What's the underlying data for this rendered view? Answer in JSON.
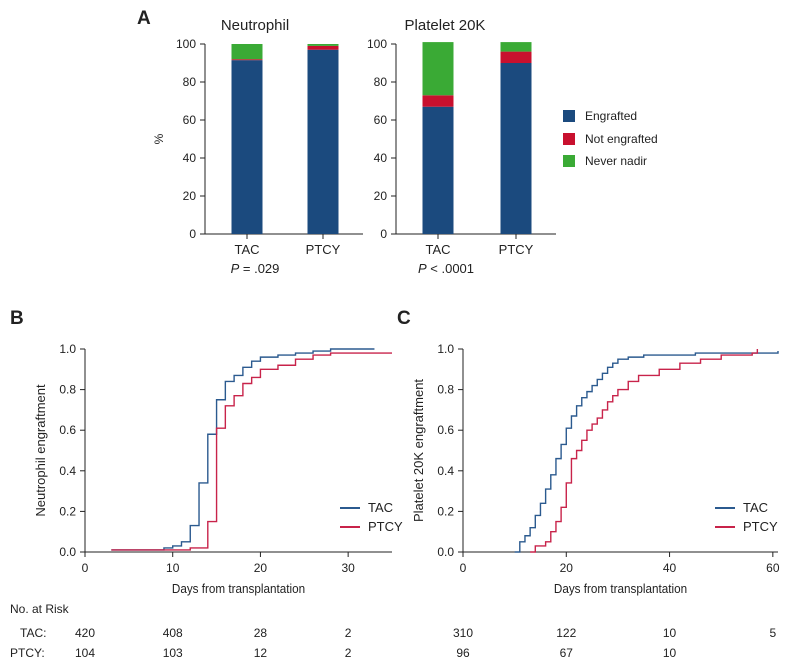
{
  "panel_labels": {
    "a": "A",
    "b": "B",
    "c": "C"
  },
  "colors": {
    "engrafted": "#1b4a7e",
    "not_engrafted": "#c8102e",
    "never_nadir": "#3aaa35",
    "tac_line": "#2b5a8f",
    "ptcy_line": "#c8234a"
  },
  "legend_a": [
    {
      "label": "Engrafted",
      "color": "#1b4a7e"
    },
    {
      "label": "Not engrafted",
      "color": "#c8102e"
    },
    {
      "label": "Never nadir",
      "color": "#3aaa35"
    }
  ],
  "chart_data": [
    {
      "type": "bar",
      "stacked": true,
      "title": "Neutrophil",
      "ylabel": "%",
      "ylim": [
        0,
        100
      ],
      "yticks": [
        0,
        20,
        40,
        60,
        80,
        100
      ],
      "categories": [
        "TAC",
        "PTCY"
      ],
      "series": [
        {
          "name": "Engrafted",
          "values": [
            91.5,
            97
          ]
        },
        {
          "name": "Not engrafted",
          "values": [
            0.5,
            2
          ]
        },
        {
          "name": "Never nadir",
          "values": [
            8,
            1
          ]
        }
      ],
      "annotation": {
        "p": "P",
        "rest": " = .029"
      }
    },
    {
      "type": "bar",
      "stacked": true,
      "title": "Platelet 20K",
      "ylim": [
        0,
        100
      ],
      "yticks": [
        0,
        20,
        40,
        60,
        80,
        100
      ],
      "categories": [
        "TAC",
        "PTCY"
      ],
      "series": [
        {
          "name": "Engrafted",
          "values": [
            67,
            90
          ]
        },
        {
          "name": "Not engrafted",
          "values": [
            6,
            6
          ]
        },
        {
          "name": "Never nadir",
          "values": [
            28,
            5
          ]
        }
      ],
      "annotation": {
        "p": "P",
        "rest": " < .0001"
      }
    },
    {
      "type": "line",
      "step": true,
      "xlabel": "Days from transplantation",
      "ylabel": "Neutrophil engraftment",
      "xlim": [
        0,
        35
      ],
      "ylim": [
        0,
        1
      ],
      "xticks": [
        0,
        10,
        20,
        30
      ],
      "yticks": [
        0.0,
        0.2,
        0.4,
        0.6,
        0.8,
        1.0
      ],
      "series": [
        {
          "name": "TAC",
          "points": [
            [
              3,
              0.01
            ],
            [
              8,
              0.01
            ],
            [
              9,
              0.02
            ],
            [
              10,
              0.03
            ],
            [
              11,
              0.05
            ],
            [
              12,
              0.13
            ],
            [
              13,
              0.34
            ],
            [
              14,
              0.58
            ],
            [
              15,
              0.75
            ],
            [
              16,
              0.84
            ],
            [
              17,
              0.87
            ],
            [
              18,
              0.91
            ],
            [
              19,
              0.94
            ],
            [
              20,
              0.96
            ],
            [
              22,
              0.97
            ],
            [
              24,
              0.98
            ],
            [
              26,
              0.99
            ],
            [
              28,
              1.0
            ],
            [
              33,
              1.0
            ]
          ]
        },
        {
          "name": "PTCY",
          "points": [
            [
              3,
              0.01
            ],
            [
              10,
              0.01
            ],
            [
              12,
              0.02
            ],
            [
              14,
              0.15
            ],
            [
              15,
              0.61
            ],
            [
              16,
              0.72
            ],
            [
              17,
              0.77
            ],
            [
              18,
              0.83
            ],
            [
              19,
              0.86
            ],
            [
              20,
              0.9
            ],
            [
              22,
              0.92
            ],
            [
              24,
              0.95
            ],
            [
              26,
              0.97
            ],
            [
              28,
              0.98
            ],
            [
              35,
              0.98
            ]
          ]
        }
      ],
      "risk": {
        "TAC": [
          "420",
          "408",
          "28",
          "2"
        ],
        "PTCY": [
          "104",
          "103",
          "12",
          "2"
        ]
      }
    },
    {
      "type": "line",
      "step": true,
      "xlabel": "Days from transplantation",
      "ylabel": "Platelet 20K engraftment",
      "xlim": [
        0,
        61
      ],
      "ylim": [
        0,
        1
      ],
      "xticks": [
        0,
        20,
        40,
        60
      ],
      "yticks": [
        0.0,
        0.2,
        0.4,
        0.6,
        0.8,
        1.0
      ],
      "series": [
        {
          "name": "TAC",
          "points": [
            [
              10,
              0.0
            ],
            [
              11,
              0.05
            ],
            [
              12,
              0.08
            ],
            [
              13,
              0.12
            ],
            [
              14,
              0.18
            ],
            [
              15,
              0.24
            ],
            [
              16,
              0.31
            ],
            [
              17,
              0.38
            ],
            [
              18,
              0.46
            ],
            [
              19,
              0.53
            ],
            [
              20,
              0.61
            ],
            [
              21,
              0.67
            ],
            [
              22,
              0.72
            ],
            [
              23,
              0.76
            ],
            [
              24,
              0.79
            ],
            [
              25,
              0.82
            ],
            [
              26,
              0.85
            ],
            [
              27,
              0.88
            ],
            [
              28,
              0.91
            ],
            [
              29,
              0.93
            ],
            [
              30,
              0.95
            ],
            [
              32,
              0.96
            ],
            [
              35,
              0.97
            ],
            [
              45,
              0.98
            ],
            [
              61,
              0.99
            ]
          ]
        },
        {
          "name": "PTCY",
          "points": [
            [
              13,
              0.0
            ],
            [
              14,
              0.03
            ],
            [
              16,
              0.05
            ],
            [
              17,
              0.1
            ],
            [
              18,
              0.15
            ],
            [
              19,
              0.22
            ],
            [
              20,
              0.34
            ],
            [
              21,
              0.46
            ],
            [
              22,
              0.5
            ],
            [
              23,
              0.55
            ],
            [
              24,
              0.6
            ],
            [
              25,
              0.63
            ],
            [
              26,
              0.66
            ],
            [
              27,
              0.7
            ],
            [
              28,
              0.74
            ],
            [
              29,
              0.77
            ],
            [
              30,
              0.8
            ],
            [
              32,
              0.84
            ],
            [
              34,
              0.87
            ],
            [
              38,
              0.9
            ],
            [
              42,
              0.93
            ],
            [
              46,
              0.95
            ],
            [
              50,
              0.97
            ],
            [
              56,
              0.98
            ],
            [
              57,
              1.0
            ]
          ]
        }
      ],
      "risk": {
        "TAC": [
          "310",
          "122",
          "10",
          "5"
        ],
        "PTCY": [
          "96",
          "67",
          "10",
          ""
        ]
      }
    }
  ],
  "risk_table": {
    "title": "No. at Risk",
    "tac_label": "TAC:",
    "ptcy_label": "PTCY:"
  },
  "line_legend": {
    "tac": "TAC",
    "ptcy": "PTCY"
  }
}
